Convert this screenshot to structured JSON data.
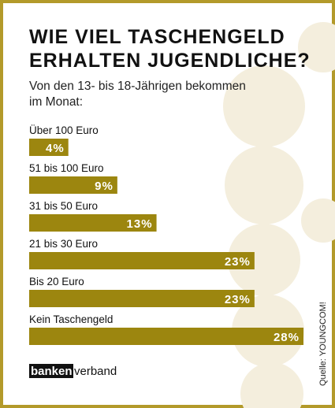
{
  "chart_data": {
    "type": "bar",
    "orientation": "horizontal",
    "title": [
      "WIE VIEL TASCHENGELD",
      "ERHALTEN JUGENDLICHE?"
    ],
    "subtitle": [
      "Von den 13- bis 18-Jährigen bekommen",
      "im Monat:"
    ],
    "categories": [
      "Über 100 Euro",
      "51 bis 100 Euro",
      "31 bis 50 Euro",
      "21 bis 30 Euro",
      "Bis 20 Euro",
      "Kein Taschengeld"
    ],
    "values": [
      4,
      9,
      13,
      23,
      23,
      28
    ],
    "value_labels": [
      "4%",
      "9%",
      "13%",
      "23%",
      "23%",
      "28%"
    ],
    "color": "#9c860f",
    "source": "Quelle: YOUNGCOM!",
    "logo": [
      "banken",
      "verband"
    ]
  }
}
